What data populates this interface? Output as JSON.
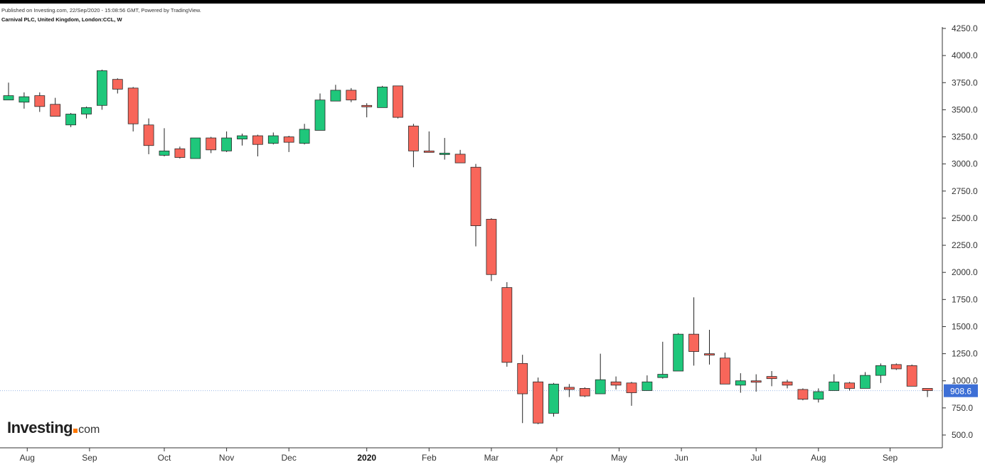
{
  "header": {
    "published": "Published on Investing.com, 22/Sep/2020 - 15:08:56 GMT, Powered by TradingView.",
    "symbol": "Carnival PLC, United Kingdom, London:CCL, W"
  },
  "logo": {
    "main": "Investing",
    "domain": "com"
  },
  "colors": {
    "up": "#1fc77b",
    "down": "#f8665a",
    "wick": "#222222",
    "price_label_bg": "#3d6fd6",
    "price_line": "#9bb7e6"
  },
  "chart_data": {
    "type": "candlestick",
    "interval": "weekly",
    "ylim": [
      500,
      4250
    ],
    "y_ticks": [
      {
        "value": 500,
        "label": "500.0"
      },
      {
        "value": 750,
        "label": "750.0"
      },
      {
        "value": 1000,
        "label": "1000.0"
      },
      {
        "value": 1250,
        "label": "1250.0"
      },
      {
        "value": 1500,
        "label": "1500.0"
      },
      {
        "value": 1750,
        "label": "1750.0"
      },
      {
        "value": 2000,
        "label": "2000.0"
      },
      {
        "value": 2250,
        "label": "2250.0"
      },
      {
        "value": 2500,
        "label": "2500.0"
      },
      {
        "value": 2750,
        "label": "2750.0"
      },
      {
        "value": 3000,
        "label": "3000.0"
      },
      {
        "value": 3250,
        "label": "3250.0"
      },
      {
        "value": 3500,
        "label": "3500.0"
      },
      {
        "value": 3750,
        "label": "3750.0"
      },
      {
        "value": 4000,
        "label": "4000.0"
      },
      {
        "value": 4250,
        "label": "4250.0"
      }
    ],
    "x_ticks": [
      {
        "label": "Aug",
        "index": 1.2,
        "bold": false
      },
      {
        "label": "Sep",
        "index": 5.2,
        "bold": false
      },
      {
        "label": "Oct",
        "index": 10.0,
        "bold": false
      },
      {
        "label": "Nov",
        "index": 14.0,
        "bold": false
      },
      {
        "label": "Dec",
        "index": 18.0,
        "bold": false
      },
      {
        "label": "2020",
        "index": 23.0,
        "bold": true
      },
      {
        "label": "Feb",
        "index": 27.0,
        "bold": false
      },
      {
        "label": "Mar",
        "index": 31.0,
        "bold": false
      },
      {
        "label": "Apr",
        "index": 35.2,
        "bold": false
      },
      {
        "label": "May",
        "index": 39.2,
        "bold": false
      },
      {
        "label": "Jun",
        "index": 43.2,
        "bold": false
      },
      {
        "label": "Jul",
        "index": 48.0,
        "bold": false
      },
      {
        "label": "Aug",
        "index": 52.0,
        "bold": false
      },
      {
        "label": "Sep",
        "index": 56.6,
        "bold": false
      }
    ],
    "last_price": {
      "value": 908.6,
      "label": "908.6"
    },
    "candles": [
      {
        "open": 3590,
        "high": 3750,
        "low": 3590,
        "close": 3630
      },
      {
        "open": 3570,
        "high": 3660,
        "low": 3510,
        "close": 3620
      },
      {
        "open": 3630,
        "high": 3660,
        "low": 3480,
        "close": 3530
      },
      {
        "open": 3550,
        "high": 3610,
        "low": 3440,
        "close": 3440
      },
      {
        "open": 3360,
        "high": 3470,
        "low": 3340,
        "close": 3460
      },
      {
        "open": 3460,
        "high": 3530,
        "low": 3420,
        "close": 3520
      },
      {
        "open": 3540,
        "high": 3870,
        "low": 3500,
        "close": 3860
      },
      {
        "open": 3780,
        "high": 3790,
        "low": 3650,
        "close": 3690
      },
      {
        "open": 3700,
        "high": 3710,
        "low": 3300,
        "close": 3370
      },
      {
        "open": 3360,
        "high": 3420,
        "low": 3090,
        "close": 3170
      },
      {
        "open": 3080,
        "high": 3330,
        "low": 3070,
        "close": 3120
      },
      {
        "open": 3140,
        "high": 3160,
        "low": 3050,
        "close": 3060
      },
      {
        "open": 3050,
        "high": 3240,
        "low": 3050,
        "close": 3240
      },
      {
        "open": 3240,
        "high": 3250,
        "low": 3100,
        "close": 3130
      },
      {
        "open": 3120,
        "high": 3300,
        "low": 3110,
        "close": 3240
      },
      {
        "open": 3230,
        "high": 3280,
        "low": 3170,
        "close": 3260
      },
      {
        "open": 3260,
        "high": 3270,
        "low": 3070,
        "close": 3180
      },
      {
        "open": 3190,
        "high": 3290,
        "low": 3180,
        "close": 3260
      },
      {
        "open": 3250,
        "high": 3260,
        "low": 3110,
        "close": 3200
      },
      {
        "open": 3190,
        "high": 3370,
        "low": 3180,
        "close": 3320
      },
      {
        "open": 3310,
        "high": 3650,
        "low": 3310,
        "close": 3590
      },
      {
        "open": 3580,
        "high": 3730,
        "low": 3580,
        "close": 3680
      },
      {
        "open": 3680,
        "high": 3700,
        "low": 3570,
        "close": 3590
      },
      {
        "open": 3540,
        "high": 3560,
        "low": 3430,
        "close": 3530
      },
      {
        "open": 3520,
        "high": 3720,
        "low": 3520,
        "close": 3710
      },
      {
        "open": 3720,
        "high": 3720,
        "low": 3420,
        "close": 3430
      },
      {
        "open": 3350,
        "high": 3370,
        "low": 2970,
        "close": 3120
      },
      {
        "open": 3120,
        "high": 3300,
        "low": 3110,
        "close": 3110
      },
      {
        "open": 3090,
        "high": 3240,
        "low": 3040,
        "close": 3100
      },
      {
        "open": 3090,
        "high": 3130,
        "low": 3010,
        "close": 3010
      },
      {
        "open": 2970,
        "high": 3000,
        "low": 2240,
        "close": 2430
      },
      {
        "open": 2490,
        "high": 2500,
        "low": 1920,
        "close": 1980
      },
      {
        "open": 1860,
        "high": 1910,
        "low": 1130,
        "close": 1170
      },
      {
        "open": 1160,
        "high": 1240,
        "low": 610,
        "close": 880
      },
      {
        "open": 990,
        "high": 1030,
        "low": 600,
        "close": 610
      },
      {
        "open": 700,
        "high": 980,
        "low": 670,
        "close": 970
      },
      {
        "open": 940,
        "high": 970,
        "low": 850,
        "close": 920
      },
      {
        "open": 930,
        "high": 940,
        "low": 850,
        "close": 860
      },
      {
        "open": 880,
        "high": 1250,
        "low": 880,
        "close": 1010
      },
      {
        "open": 990,
        "high": 1040,
        "low": 920,
        "close": 960
      },
      {
        "open": 980,
        "high": 990,
        "low": 770,
        "close": 890
      },
      {
        "open": 910,
        "high": 1050,
        "low": 910,
        "close": 990
      },
      {
        "open": 1030,
        "high": 1360,
        "low": 1020,
        "close": 1060
      },
      {
        "open": 1090,
        "high": 1440,
        "low": 1090,
        "close": 1430
      },
      {
        "open": 1430,
        "high": 1770,
        "low": 1140,
        "close": 1270
      },
      {
        "open": 1250,
        "high": 1470,
        "low": 1150,
        "close": 1240
      },
      {
        "open": 1210,
        "high": 1260,
        "low": 970,
        "close": 970
      },
      {
        "open": 960,
        "high": 1070,
        "low": 890,
        "close": 1000
      },
      {
        "open": 1000,
        "high": 1060,
        "low": 900,
        "close": 990
      },
      {
        "open": 1040,
        "high": 1090,
        "low": 950,
        "close": 1020
      },
      {
        "open": 990,
        "high": 1010,
        "low": 930,
        "close": 960
      },
      {
        "open": 920,
        "high": 930,
        "low": 820,
        "close": 830
      },
      {
        "open": 830,
        "high": 930,
        "low": 800,
        "close": 900
      },
      {
        "open": 910,
        "high": 1060,
        "low": 910,
        "close": 990
      },
      {
        "open": 980,
        "high": 990,
        "low": 910,
        "close": 930
      },
      {
        "open": 930,
        "high": 1080,
        "low": 930,
        "close": 1050
      },
      {
        "open": 1050,
        "high": 1160,
        "low": 980,
        "close": 1140
      },
      {
        "open": 1150,
        "high": 1160,
        "low": 1100,
        "close": 1110
      },
      {
        "open": 1140,
        "high": 1150,
        "low": 950,
        "close": 950
      },
      {
        "open": 930,
        "high": 930,
        "low": 850,
        "close": 910
      }
    ]
  }
}
